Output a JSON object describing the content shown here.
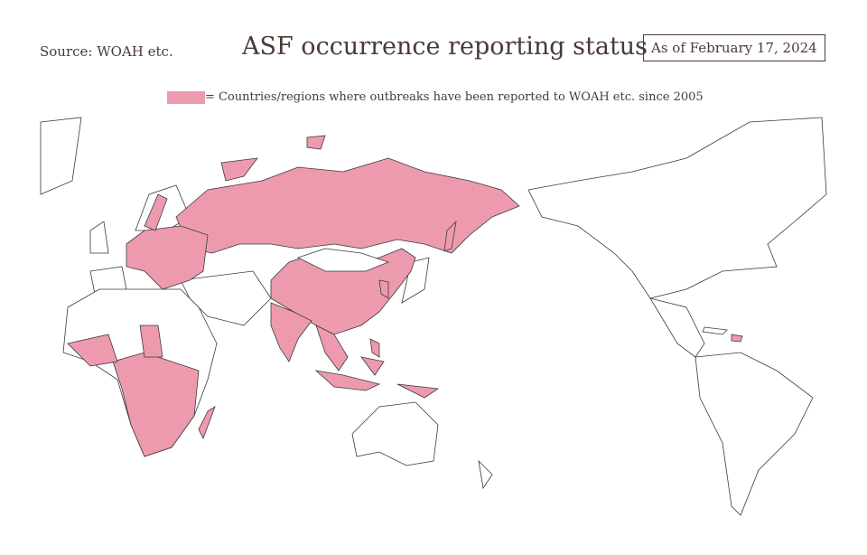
{
  "header": {
    "source": "Source: WOAH etc.",
    "title": "ASF occurrence reporting status",
    "date": "As of February 17, 2024"
  },
  "legend": {
    "label": "= Countries/regions where outbreaks have been reported to WOAH etc. since 2005",
    "color": "#ee9aae"
  }
}
